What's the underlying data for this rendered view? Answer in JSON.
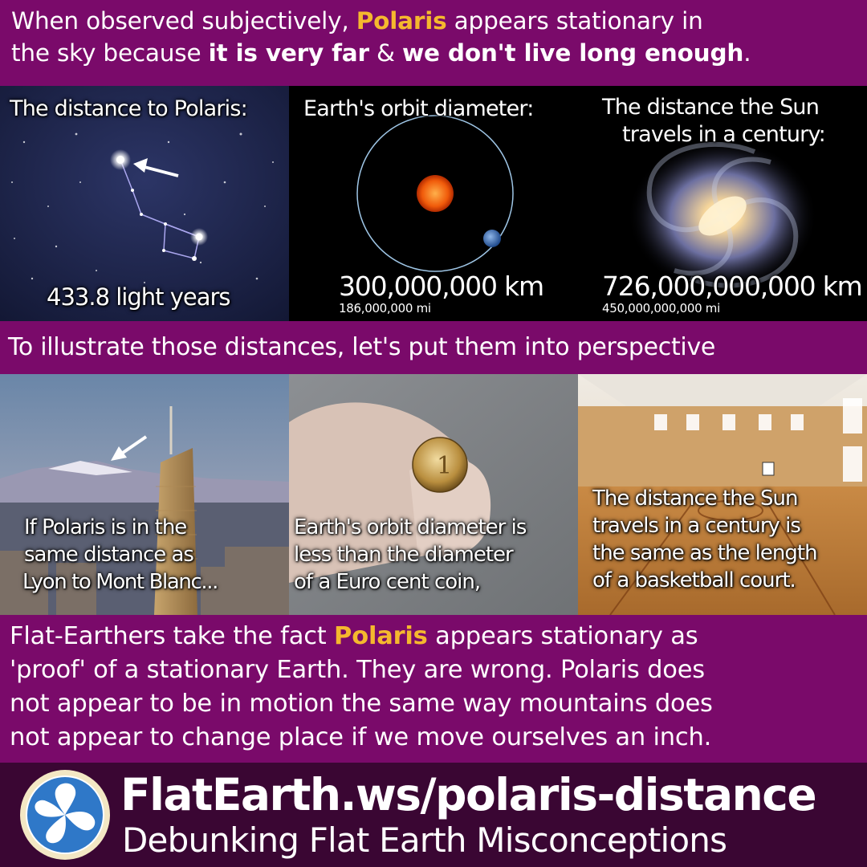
{
  "header": {
    "line1_a": "When observed subjectively, ",
    "line1_hl": "Polaris",
    "line1_b": " appears stationary in",
    "line2_a": "the sky because ",
    "line2_bold1": "it is very far",
    "line2_mid": " & ",
    "line2_bold2": "we don't live long enough",
    "line2_end": "."
  },
  "panels_top": [
    {
      "title": "The distance to Polaris:",
      "value": "433.8 light years"
    },
    {
      "title": "Earth's orbit diameter:",
      "value": "300,000,000 km",
      "sub": "186,000,000 mi"
    },
    {
      "title_l1": "The distance the Sun",
      "title_l2": "travels in a century:",
      "value": "726,000,000,000 km",
      "sub": "450,000,000,000 mi"
    }
  ],
  "middle": {
    "text": "To illustrate those distances, let's put them into perspective"
  },
  "panels_bottom": [
    {
      "l1": "If Polaris is in the",
      "l2": "same distance as",
      "l3": "Lyon to Mont Blanc..."
    },
    {
      "l1": "Earth's orbit diameter is",
      "l2": "less than the diameter",
      "l3": "of a Euro cent coin,"
    },
    {
      "l1": "The distance the Sun",
      "l2": "travels in a century is",
      "l3": "the same as the length",
      "l4": "of a basketball court."
    }
  ],
  "bottom": {
    "l1_a": "Flat-Earthers take the fact ",
    "l1_hl": "Polaris",
    "l1_b": " appears stationary as",
    "l2": "'proof' of a stationary Earth. They are wrong. Polaris does",
    "l3": "not appear to be in motion the same way mountains does",
    "l4": "not appear to change place if we move ourselves an inch."
  },
  "footer": {
    "url": "FlatEarth.ws/polaris-distance",
    "tagline": "Debunking Flat Earth Misconceptions"
  },
  "colors": {
    "band": "#7a0a6a",
    "footer": "#3a0633",
    "highlight": "#f5b82e"
  }
}
